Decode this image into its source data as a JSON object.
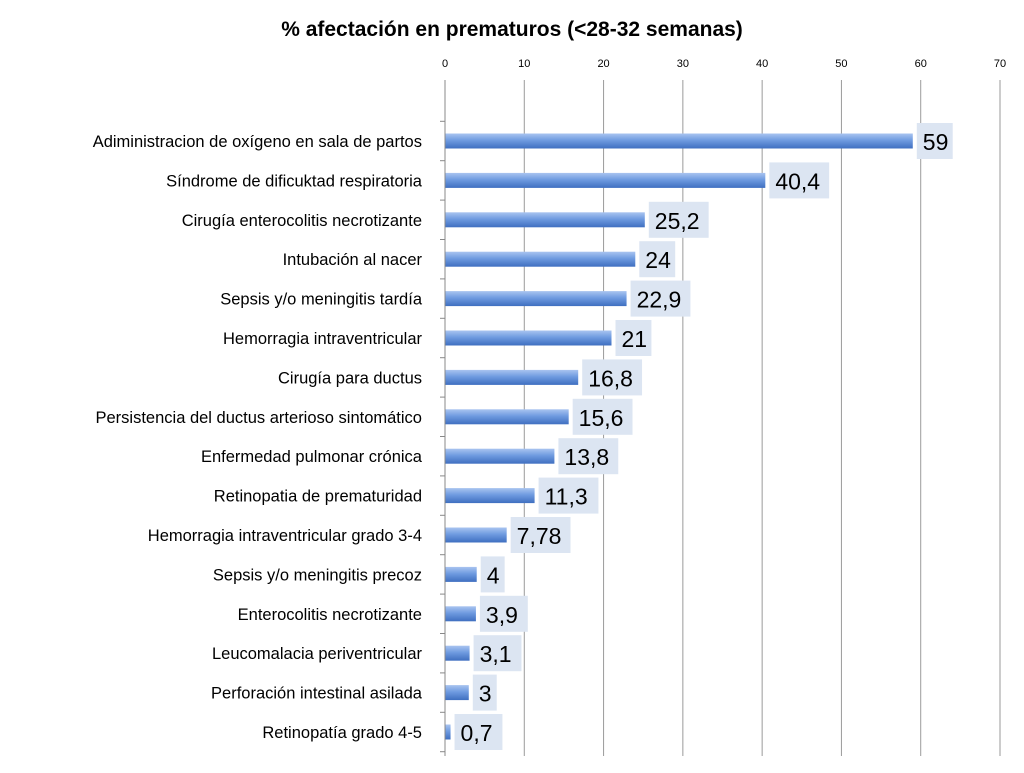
{
  "chart_data": {
    "type": "bar",
    "orientation": "horizontal",
    "title": "% afectación en prematuros (<28-32 semanas)",
    "xlabel": "",
    "ylabel": "",
    "xlim": [
      0,
      70
    ],
    "xticks": [
      0,
      10,
      20,
      30,
      40,
      50,
      60,
      70
    ],
    "x_axis_position": "top",
    "grid": true,
    "legend": "none",
    "categories": [
      "Adiministracion de oxígeno en sala de partos",
      "Síndrome de dificuktad respiratoria",
      "Cirugía enterocolitis necrotizante",
      "Intubación al nacer",
      "Sepsis y/o meningitis tardía",
      "Hemorragia intraventricular",
      "Cirugía para ductus",
      "Persistencia del ductus arterioso sintomático",
      "Enfermedad pulmonar crónica",
      "Retinopatia de prematuridad",
      "Hemorragia intraventricular grado 3-4",
      "Sepsis y/o meningitis precoz",
      "Enterocolitis necrotizante",
      "Leucomalacia periventricular",
      "Perforación intestinal asilada",
      "Retinopatía grado 4-5"
    ],
    "values": [
      59,
      40.4,
      25.2,
      24,
      22.9,
      21,
      16.8,
      15.6,
      13.8,
      11.3,
      7.78,
      4,
      3.9,
      3.1,
      3,
      0.7
    ],
    "data_labels": [
      "59",
      "40,4",
      "25,2",
      "24",
      "22,9",
      "21",
      "16,8",
      "15,6",
      "13,8",
      "11,3",
      "7,78",
      "4",
      "3,9",
      "3,1",
      "3",
      "0,7"
    ],
    "colors": {
      "bar": "#6f9be0",
      "bar_light": "#a9c4f0",
      "bar_dark": "#3f6fc0",
      "label_bg": "#dce5f2",
      "grid": "#9a9a9a",
      "axis": "#888888",
      "text": "#000000"
    }
  }
}
